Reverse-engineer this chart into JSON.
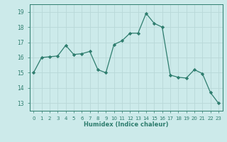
{
  "x": [
    0,
    1,
    2,
    3,
    4,
    5,
    6,
    7,
    8,
    9,
    10,
    11,
    12,
    13,
    14,
    15,
    16,
    17,
    18,
    19,
    20,
    21,
    22,
    23
  ],
  "y": [
    15.0,
    16.0,
    16.05,
    16.1,
    16.8,
    16.2,
    16.25,
    16.4,
    15.2,
    15.0,
    16.85,
    17.1,
    17.6,
    17.6,
    18.9,
    18.25,
    18.0,
    14.85,
    14.7,
    14.65,
    15.2,
    14.95,
    13.7,
    13.0
  ],
  "xlabel": "Humidex (Indice chaleur)",
  "xlim": [
    -0.5,
    23.5
  ],
  "ylim": [
    12.5,
    19.5
  ],
  "yticks": [
    13,
    14,
    15,
    16,
    17,
    18,
    19
  ],
  "xticks": [
    0,
    1,
    2,
    3,
    4,
    5,
    6,
    7,
    8,
    9,
    10,
    11,
    12,
    13,
    14,
    15,
    16,
    17,
    18,
    19,
    20,
    21,
    22,
    23
  ],
  "line_color": "#2e7d6e",
  "marker_color": "#2e7d6e",
  "bg_color": "#cceaea",
  "grid_color": "#b8d8d8",
  "tick_color": "#2e7d6e",
  "label_color": "#2e7d6e"
}
